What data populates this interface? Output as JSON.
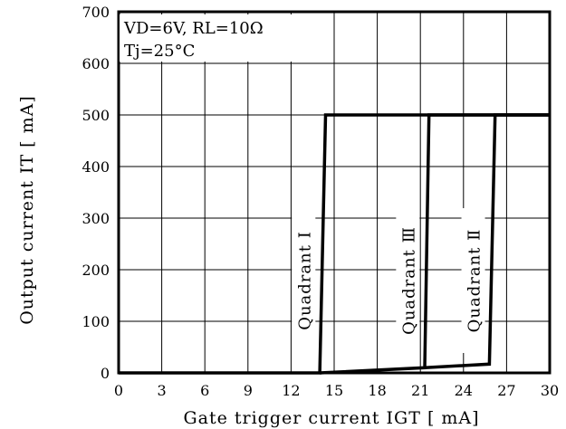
{
  "chart_data": {
    "type": "line",
    "xlabel": "Gate trigger current IGT [ mA]",
    "ylabel": "Output current IT [ mA]",
    "xlim": [
      0,
      30
    ],
    "ylim": [
      0,
      700
    ],
    "x_ticks": [
      "0",
      "3",
      "6",
      "9",
      "12",
      "15",
      "18",
      "21",
      "24",
      "27",
      "30"
    ],
    "y_ticks": [
      "0",
      "100",
      "200",
      "300",
      "400",
      "500",
      "600",
      "700"
    ],
    "grid": true,
    "conditions": [
      "VD=6V,  RL=10Ω",
      "Tj=25°C"
    ],
    "series": [
      {
        "name": "Quadrant Ⅰ",
        "x": [
          0,
          14.0,
          14.4,
          30
        ],
        "y": [
          0,
          0,
          500,
          500
        ]
      },
      {
        "name": "Quadrant Ⅲ",
        "x": [
          14.0,
          21.3,
          21.6,
          30
        ],
        "y": [
          0,
          10,
          500,
          500
        ]
      },
      {
        "name": "Quadrant Ⅱ",
        "x": [
          21.3,
          25.8,
          26.2,
          30
        ],
        "y": [
          10,
          17,
          500,
          500
        ]
      }
    ]
  }
}
